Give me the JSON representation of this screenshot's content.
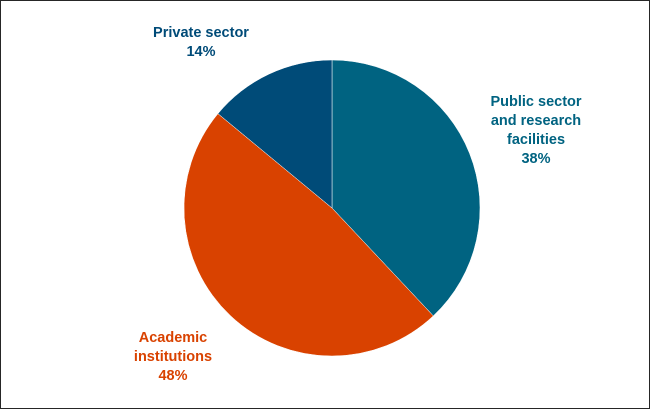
{
  "chart_data": {
    "type": "pie",
    "title": "",
    "start_angle_deg": 0,
    "direction": "clockwise",
    "slices": [
      {
        "label_lines": [
          "Public sector",
          "and research",
          "facilities"
        ],
        "value": 38,
        "value_label": "38%",
        "color": "#006381",
        "label_color": "#006381"
      },
      {
        "label_lines": [
          "Academic",
          "institutions"
        ],
        "value": 48,
        "value_label": "48%",
        "color": "#d94200",
        "label_color": "#d94200"
      },
      {
        "label_lines": [
          "Private sector"
        ],
        "value": 14,
        "value_label": "14%",
        "color": "#004b78",
        "label_color": "#004b78"
      }
    ]
  }
}
